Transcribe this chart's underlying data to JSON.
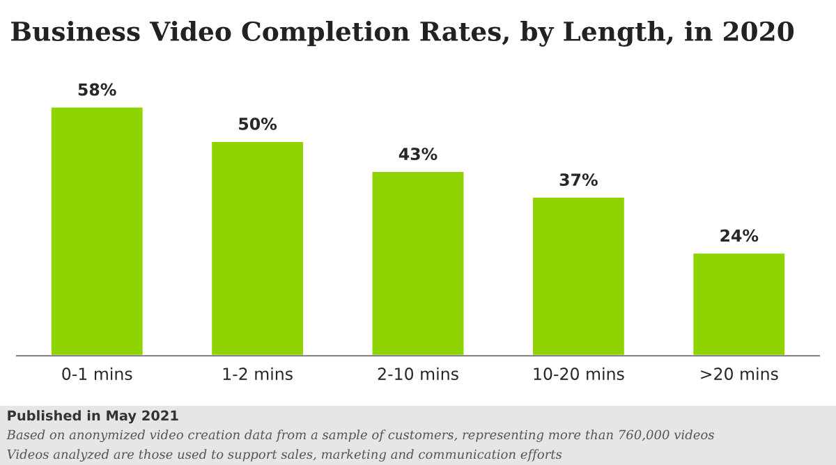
{
  "chart_data": {
    "type": "bar",
    "title": "Business Video Completion Rates, by Length, in 2020",
    "categories": [
      "0-1 mins",
      "1-2 mins",
      "2-10 mins",
      "10-20 mins",
      ">20 mins"
    ],
    "values": [
      58,
      50,
      43,
      37,
      24
    ],
    "value_labels": [
      "58%",
      "50%",
      "43%",
      "37%",
      "24%"
    ],
    "color": "#8fd400",
    "annotations": [
      "Published in May 2021",
      "Based on anonymized video creation data from a sample of customers, representing more than 760,000 videos",
      "Videos analyzed are those used to support sales, marketing and communication efforts"
    ]
  }
}
